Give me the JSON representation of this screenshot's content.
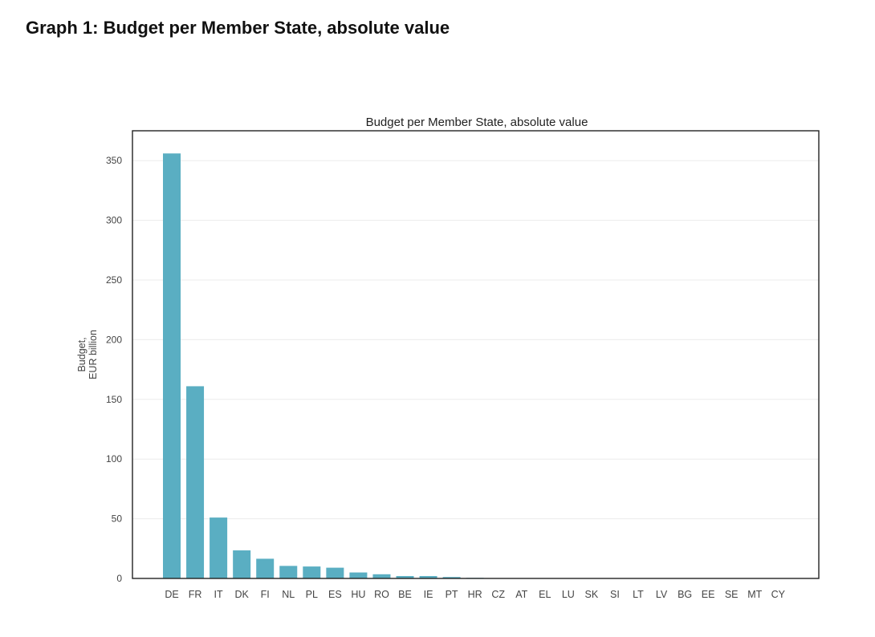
{
  "page": {
    "heading": "Graph 1: Budget per Member State, absolute value"
  },
  "chart_data": {
    "type": "bar",
    "title": "Budget per Member State, absolute value",
    "xlabel": "",
    "ylabel_lines": [
      "Budget,",
      "EUR billion"
    ],
    "categories": [
      "DE",
      "FR",
      "IT",
      "DK",
      "FI",
      "NL",
      "PL",
      "ES",
      "HU",
      "RO",
      "BE",
      "IE",
      "PT",
      "HR",
      "CZ",
      "AT",
      "EL",
      "LU",
      "SK",
      "SI",
      "LT",
      "LV",
      "BG",
      "EE",
      "SE",
      "MT",
      "CY"
    ],
    "values": [
      356,
      161,
      51,
      23.5,
      16.5,
      10.5,
      10,
      9,
      5,
      3.5,
      2,
      2,
      1.2,
      0.5,
      0.3,
      0.3,
      0.2,
      0.1,
      0.1,
      0.1,
      0.05,
      0.05,
      0.05,
      0.05,
      0.05,
      0.02,
      0.02
    ],
    "ylim": [
      0,
      375
    ],
    "yticks": [
      0,
      50,
      100,
      150,
      200,
      250,
      300,
      350
    ],
    "grid": true,
    "bar_color": "#5aaec2",
    "grid_color": "#ececec",
    "frame_color": "#222222"
  }
}
